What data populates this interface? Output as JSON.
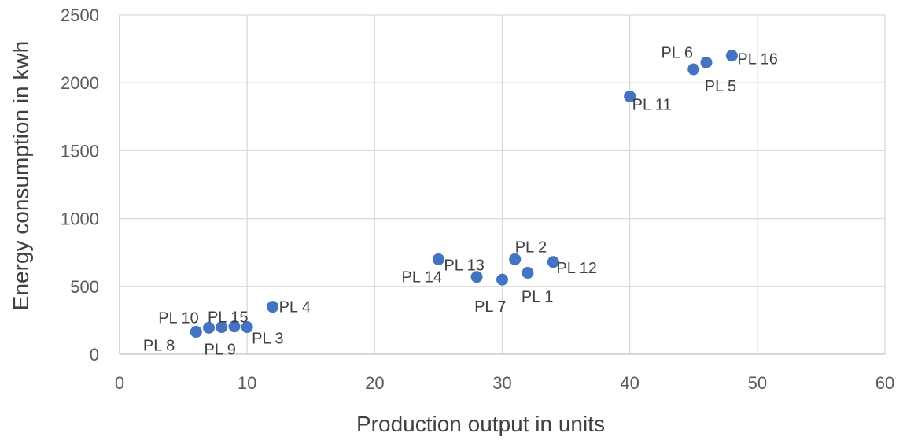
{
  "chart_data": {
    "type": "scatter",
    "title": "",
    "xlabel": "Production output in units",
    "ylabel": "Energy consumption in kwh",
    "xlim": [
      0,
      60
    ],
    "ylim": [
      0,
      2500
    ],
    "xticks": [
      0,
      10,
      20,
      30,
      40,
      50,
      60
    ],
    "yticks": [
      0,
      500,
      1000,
      1500,
      2000,
      2500
    ],
    "grid": true,
    "legend": "none",
    "marker_color": "#4472C4",
    "points": [
      {
        "label": "PL 1",
        "x": 32,
        "y": 600
      },
      {
        "label": "PL 2",
        "x": 31,
        "y": 700
      },
      {
        "label": "PL 3",
        "x": 10,
        "y": 200
      },
      {
        "label": "PL 4",
        "x": 12,
        "y": 350
      },
      {
        "label": "PL 5",
        "x": 45,
        "y": 2100
      },
      {
        "label": "PL 6",
        "x": 46,
        "y": 2150
      },
      {
        "label": "PL 7",
        "x": 30,
        "y": 550
      },
      {
        "label": "PL 8",
        "x": 6,
        "y": 165
      },
      {
        "label": "PL 9",
        "x": 7,
        "y": 195
      },
      {
        "label": "PL 10",
        "x": 8,
        "y": 200
      },
      {
        "label": "PL 11",
        "x": 40,
        "y": 1900
      },
      {
        "label": "PL 12",
        "x": 34,
        "y": 680
      },
      {
        "label": "PL 13",
        "x": 25,
        "y": 700
      },
      {
        "label": "PL 14",
        "x": 28,
        "y": 570
      },
      {
        "label": "PL 15",
        "x": 9,
        "y": 205
      },
      {
        "label": "PL 16",
        "x": 48,
        "y": 2200
      }
    ]
  }
}
